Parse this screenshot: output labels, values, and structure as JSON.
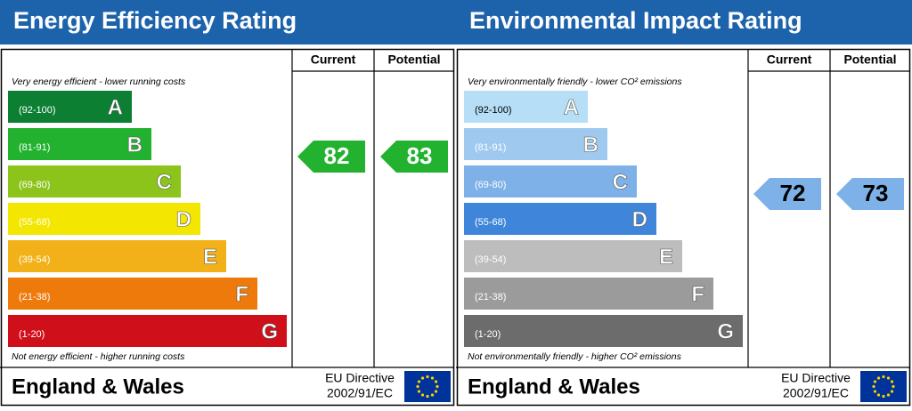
{
  "panels": [
    {
      "title": "Energy Efficiency Rating",
      "current_header": "Current",
      "potential_header": "Potential",
      "top_note": "Very energy efficient - lower running costs",
      "bottom_note": "Not energy efficient - higher running costs",
      "bands": [
        {
          "range": "(92-100)",
          "letter": "A",
          "color": "#0c7f33"
        },
        {
          "range": "(81-91)",
          "letter": "B",
          "color": "#22b22f"
        },
        {
          "range": "(69-80)",
          "letter": "C",
          "color": "#8cc41c"
        },
        {
          "range": "(55-68)",
          "letter": "D",
          "color": "#f3e600"
        },
        {
          "range": "(39-54)",
          "letter": "E",
          "color": "#f2b118"
        },
        {
          "range": "(21-38)",
          "letter": "F",
          "color": "#ee7a0b"
        },
        {
          "range": "(1-20)",
          "letter": "G",
          "color": "#cf0f1a"
        }
      ],
      "current": 82,
      "potential": 83,
      "current_color": "#22b22f",
      "potential_color": "#22b22f",
      "footer": "England & Wales",
      "directive": [
        "EU Directive",
        "2002/91/EC"
      ]
    },
    {
      "title": "Environmental Impact Rating",
      "current_header": "Current",
      "potential_header": "Potential",
      "top_note": "Very environmentally friendly - lower CO² emissions",
      "bottom_note": "Not environmentally friendly - higher CO² emissions",
      "bands": [
        {
          "range": "(92-100)",
          "letter": "A",
          "color": "#b6def6"
        },
        {
          "range": "(81-91)",
          "letter": "B",
          "color": "#9fc9ef"
        },
        {
          "range": "(69-80)",
          "letter": "C",
          "color": "#7db1e7"
        },
        {
          "range": "(55-68)",
          "letter": "D",
          "color": "#3f85da"
        },
        {
          "range": "(39-54)",
          "letter": "E",
          "color": "#bdbdbd"
        },
        {
          "range": "(21-38)",
          "letter": "F",
          "color": "#9b9b9b"
        },
        {
          "range": "(1-20)",
          "letter": "G",
          "color": "#6c6c6c"
        }
      ],
      "current": 72,
      "potential": 73,
      "current_color": "#7db1e7",
      "potential_color": "#7db1e7",
      "footer": "England & Wales",
      "directive": [
        "EU Directive",
        "2002/91/EC"
      ]
    }
  ]
}
